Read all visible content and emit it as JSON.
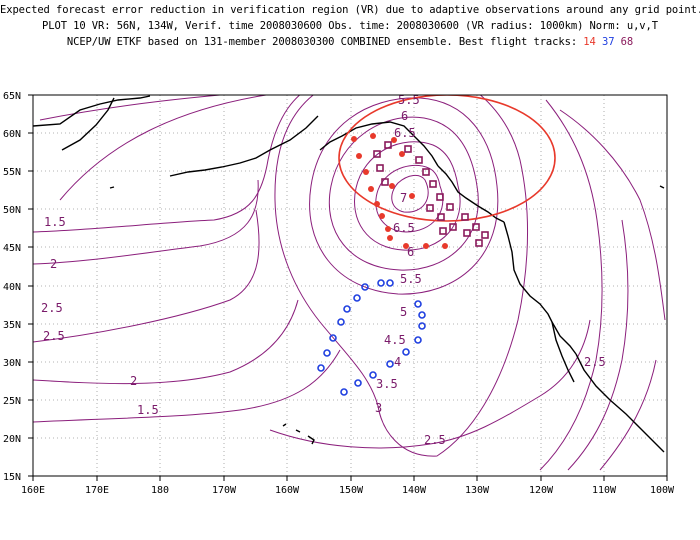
{
  "title": {
    "line1": "Expected forecast error reduction in verification region (VR) due to adaptive observations around any grid point.",
    "line2": "PLOT 10 VR: 56N, 134W, Verif. time 2008030600 Obs. time: 2008030600 (VR radius: 1000km) Norm: u,v,T",
    "line3_prefix": "NCEP/UW ETKF based on 131-member 2008030300 COMBINED ensemble.  Best flight tracks:",
    "track_a": "14",
    "track_b": "37",
    "track_c": "68"
  },
  "axes": {
    "lat_labels": [
      "65N",
      "60N",
      "55N",
      "50N",
      "45N",
      "40N",
      "35N",
      "30N",
      "25N",
      "20N",
      "15N"
    ],
    "lon_labels": [
      "160E",
      "170E",
      "180",
      "170W",
      "160W",
      "150W",
      "140W",
      "130W",
      "120W",
      "110W",
      "100W"
    ]
  },
  "contour_labels": [
    {
      "text": "5.5"
    },
    {
      "text": "6"
    },
    {
      "text": "6.5"
    },
    {
      "text": "7"
    },
    {
      "text": "6.5"
    },
    {
      "text": "6"
    },
    {
      "text": "5.5"
    },
    {
      "text": "5"
    },
    {
      "text": "4.5"
    },
    {
      "text": "4"
    },
    {
      "text": "3.5"
    },
    {
      "text": "3"
    },
    {
      "text": "2.5"
    },
    {
      "text": "2.5"
    },
    {
      "text": "2.5"
    },
    {
      "text": "2"
    },
    {
      "text": "2"
    },
    {
      "text": "1.5"
    },
    {
      "text": "1.5"
    },
    {
      "text": "2.5"
    }
  ],
  "colors": {
    "contour": "#8b1f7c",
    "track14": "#e8392b",
    "track37": "#1f3fe0",
    "track68": "#8a1a5c",
    "vr_circle": "#e8392b"
  }
}
